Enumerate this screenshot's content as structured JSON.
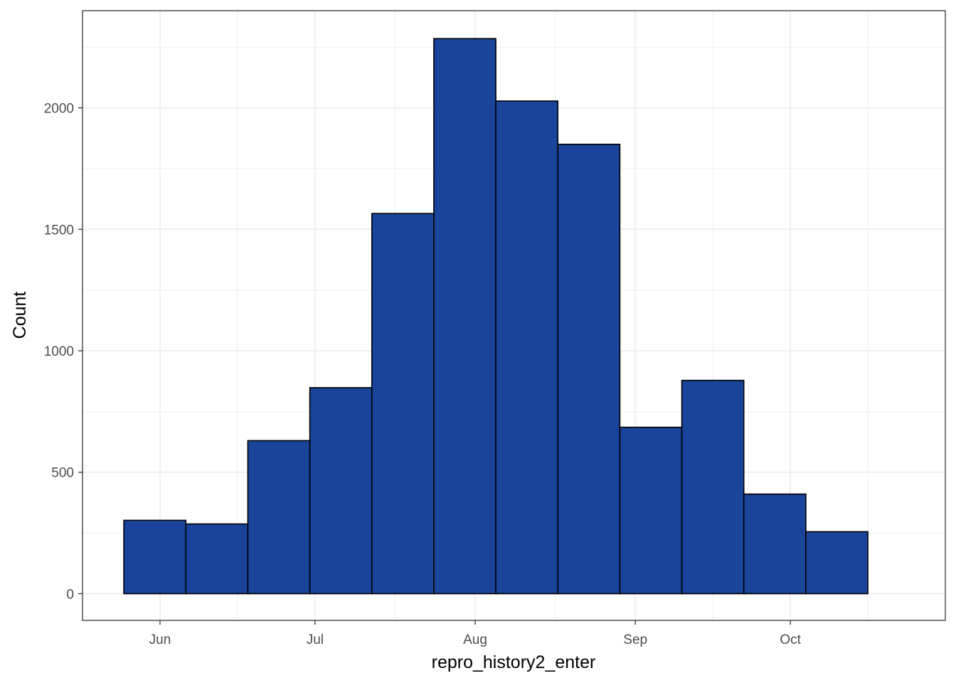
{
  "chart_data": {
    "type": "bar",
    "title": "",
    "xlabel": "repro_history2_enter",
    "ylabel": "Count",
    "grid": true,
    "legend": "none",
    "colors": {
      "fill": "#1a4499",
      "outline": "#000000",
      "grid": "#ebebeb",
      "panel_border": "#333333"
    },
    "x_scale": "date",
    "x_ticks": [
      {
        "label": "Jun",
        "date": "2023-06-01"
      },
      {
        "label": "Jul",
        "date": "2023-07-01"
      },
      {
        "label": "Aug",
        "date": "2023-08-01"
      },
      {
        "label": "Sep",
        "date": "2023-09-01"
      },
      {
        "label": "Oct",
        "date": "2023-10-01"
      }
    ],
    "xlim": [
      "2023-05-17",
      "2023-10-31"
    ],
    "ylim": [
      -110,
      2400
    ],
    "y_ticks": [
      0,
      500,
      1000,
      1500,
      2000
    ],
    "bins": [
      {
        "start": "2023-05-25",
        "end": "2023-06-06",
        "value": 302
      },
      {
        "start": "2023-06-06",
        "end": "2023-06-18",
        "value": 287
      },
      {
        "start": "2023-06-18",
        "end": "2023-06-30",
        "value": 630
      },
      {
        "start": "2023-06-30",
        "end": "2023-07-12",
        "value": 848
      },
      {
        "start": "2023-07-12",
        "end": "2023-07-24",
        "value": 1565
      },
      {
        "start": "2023-07-24",
        "end": "2023-08-05",
        "value": 2285
      },
      {
        "start": "2023-08-05",
        "end": "2023-08-17",
        "value": 2028
      },
      {
        "start": "2023-08-17",
        "end": "2023-08-29",
        "value": 1850
      },
      {
        "start": "2023-08-29",
        "end": "2023-09-10",
        "value": 685
      },
      {
        "start": "2023-09-10",
        "end": "2023-09-22",
        "value": 878
      },
      {
        "start": "2023-09-22",
        "end": "2023-10-04",
        "value": 410
      },
      {
        "start": "2023-10-04",
        "end": "2023-10-16",
        "value": 255
      }
    ]
  }
}
